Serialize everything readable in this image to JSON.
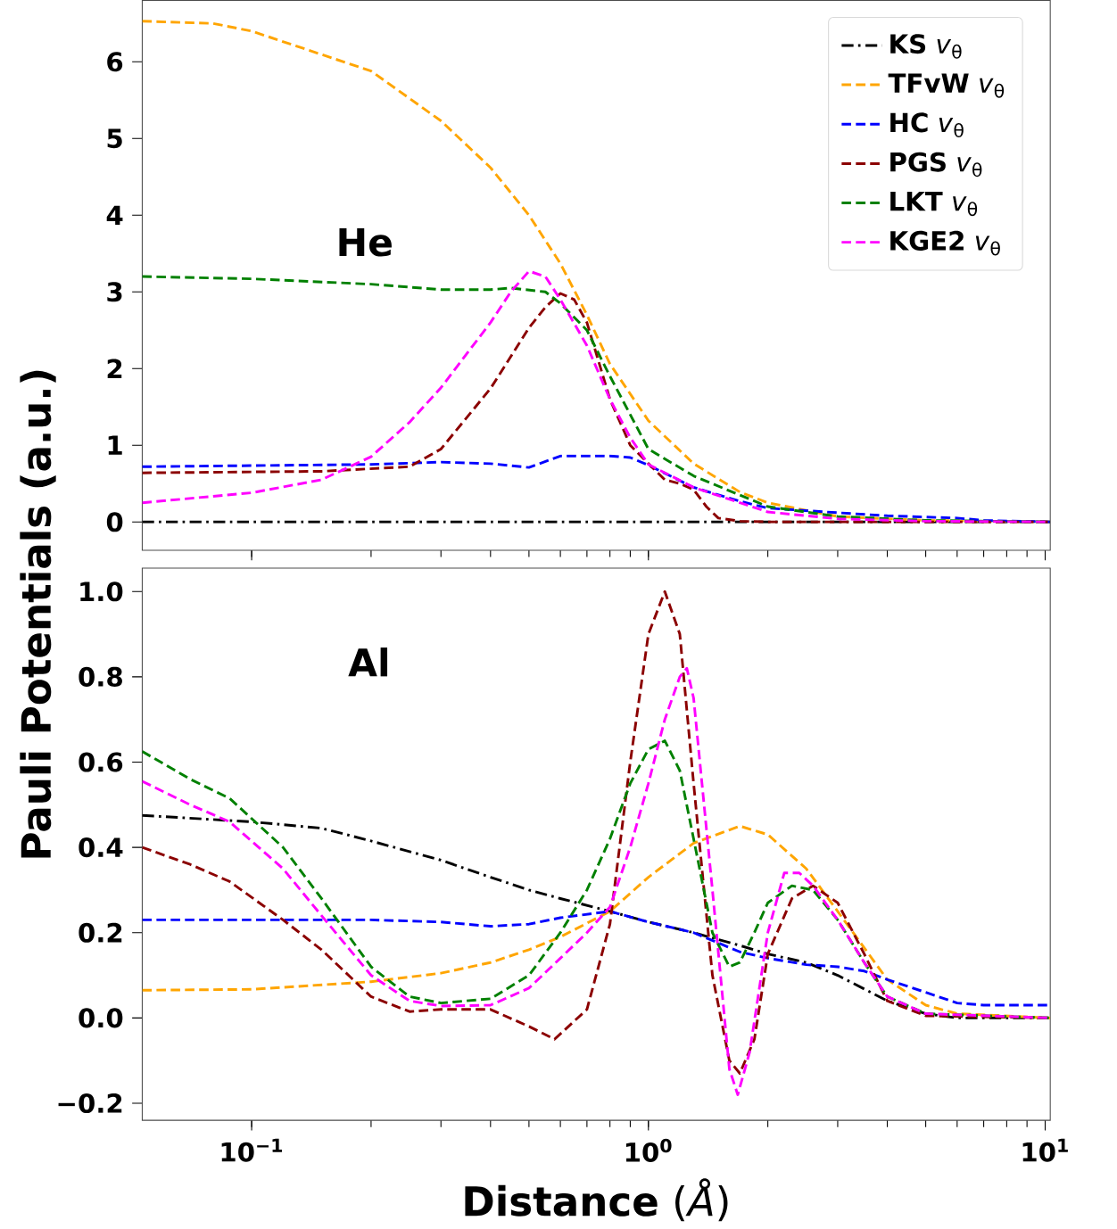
{
  "chart_data": [
    {
      "type": "line",
      "log": "x",
      "xlim": [
        0.053,
        10.3
      ],
      "ylim": [
        -0.37,
        6.8
      ],
      "legend": "top right",
      "tick_labels": "y",
      "ylabel": "Pauli Potentials (a.u.)",
      "annotations": [
        "**He**"
      ],
      "xticks": [
        {
          "value": 0.1,
          "label": null
        },
        {
          "value": 1,
          "label": null
        },
        {
          "value": 10,
          "label": null
        }
      ],
      "yticks": [
        0,
        1,
        2,
        3,
        4,
        5,
        6
      ],
      "series": [
        {
          "name": "**KS** *v*$_{θ}$",
          "color": "#000000",
          "line_style": "dashdot",
          "x": [
            0.053,
            0.1,
            1,
            10.3
          ],
          "values": [
            0,
            0,
            0,
            0
          ]
        },
        {
          "name": "**TFvW** *v*$_{θ}$",
          "color": "#ffa500",
          "line_style": "dashed",
          "x": [
            0.053,
            0.08,
            0.1,
            0.2,
            0.3,
            0.4,
            0.5,
            0.6,
            0.7,
            0.8,
            1.0,
            1.3,
            1.7,
            2,
            3,
            5,
            10.3
          ],
          "values": [
            6.53,
            6.5,
            6.4,
            5.88,
            5.23,
            4.62,
            4.0,
            3.37,
            2.7,
            2.06,
            1.32,
            0.76,
            0.39,
            0.25,
            0.07,
            0.02,
            0
          ]
        },
        {
          "name": "**HC** *v*$_{θ}$",
          "color": "#0000ff",
          "line_style": "dashed",
          "x": [
            0.053,
            0.2,
            0.3,
            0.4,
            0.5,
            0.6,
            0.8,
            0.9,
            1.0,
            1.3,
            1.7,
            2,
            3,
            4,
            6,
            7,
            10.3
          ],
          "values": [
            0.72,
            0.75,
            0.78,
            0.76,
            0.71,
            0.86,
            0.86,
            0.84,
            0.74,
            0.45,
            0.27,
            0.18,
            0.12,
            0.08,
            0.05,
            0.02,
            0
          ]
        },
        {
          "name": "**PGS** *v*$_{θ}$",
          "color": "#8b0000",
          "line_style": "dashed",
          "x": [
            0.053,
            0.15,
            0.25,
            0.3,
            0.4,
            0.5,
            0.55,
            0.6,
            0.65,
            0.7,
            0.8,
            0.9,
            1.0,
            1.1,
            1.2,
            1.3,
            1.4,
            1.5,
            1.7,
            2,
            10.3
          ],
          "values": [
            0.64,
            0.66,
            0.72,
            0.95,
            1.74,
            2.53,
            2.8,
            2.98,
            2.9,
            2.6,
            1.6,
            1.0,
            0.76,
            0.55,
            0.5,
            0.42,
            0.2,
            0.05,
            0.01,
            0,
            0
          ]
        },
        {
          "name": "**LKT** *v*$_{θ}$",
          "color": "#008000",
          "line_style": "dashed",
          "x": [
            0.053,
            0.1,
            0.2,
            0.3,
            0.4,
            0.45,
            0.55,
            0.6,
            0.7,
            0.8,
            0.9,
            1.0,
            1.3,
            1.7,
            2,
            3,
            5,
            10.3
          ],
          "values": [
            3.2,
            3.17,
            3.1,
            3.03,
            3.03,
            3.05,
            3.0,
            2.85,
            2.5,
            1.9,
            1.4,
            0.95,
            0.6,
            0.35,
            0.2,
            0.07,
            0.02,
            0
          ]
        },
        {
          "name": "**KGE2** *v*$_{θ}$",
          "color": "#ff00ff",
          "line_style": "dashed",
          "x": [
            0.053,
            0.1,
            0.15,
            0.2,
            0.25,
            0.3,
            0.4,
            0.45,
            0.5,
            0.55,
            0.6,
            0.7,
            0.8,
            0.9,
            1.0,
            1.3,
            1.7,
            2,
            3,
            5,
            10.3
          ],
          "values": [
            0.25,
            0.38,
            0.55,
            0.85,
            1.3,
            1.75,
            2.6,
            3.0,
            3.27,
            3.2,
            2.9,
            2.3,
            1.6,
            1.1,
            0.75,
            0.45,
            0.25,
            0.13,
            0.04,
            0.01,
            0
          ]
        }
      ]
    },
    {
      "type": "line",
      "log": "x",
      "xlim": [
        0.053,
        10.3
      ],
      "ylim": [
        -0.24,
        1.055
      ],
      "xlabel": "**Distance**  (*Å*)",
      "annotations": [
        "**Al**"
      ],
      "xticks": [
        {
          "value": 0.1,
          "label": "10$^{−1}$"
        },
        {
          "value": 1,
          "label": "10$^{0}$"
        },
        {
          "value": 10,
          "label": "10$^{1}$"
        }
      ],
      "yticks": [
        {
          "value": -0.2,
          "label": "−0.2"
        },
        {
          "value": 0,
          "label": "0.0"
        },
        {
          "value": 0.2,
          "label": "0.2"
        },
        {
          "value": 0.4,
          "label": "0.4"
        },
        {
          "value": 0.6,
          "label": "0.6"
        },
        {
          "value": 0.8,
          "label": "0.8"
        },
        {
          "value": 1.0,
          "label": "1.0"
        }
      ],
      "series": [
        {
          "color": "#000000",
          "line_style": "dashdot",
          "x": [
            0.053,
            0.1,
            0.15,
            0.2,
            0.3,
            0.4,
            0.5,
            0.6,
            0.8,
            1.0,
            1.3,
            1.7,
            2,
            2.5,
            3,
            4,
            5,
            6,
            10.3
          ],
          "values": [
            0.475,
            0.46,
            0.445,
            0.415,
            0.37,
            0.33,
            0.3,
            0.28,
            0.25,
            0.225,
            0.2,
            0.17,
            0.15,
            0.13,
            0.1,
            0.04,
            0.01,
            0,
            0
          ]
        },
        {
          "color": "#ffa500",
          "line_style": "dashed",
          "x": [
            0.053,
            0.1,
            0.2,
            0.3,
            0.4,
            0.5,
            0.6,
            0.8,
            1.0,
            1.3,
            1.7,
            2,
            2.5,
            3,
            4,
            5,
            6,
            10.3
          ],
          "values": [
            0.065,
            0.067,
            0.085,
            0.105,
            0.13,
            0.16,
            0.19,
            0.25,
            0.33,
            0.41,
            0.45,
            0.43,
            0.35,
            0.25,
            0.09,
            0.03,
            0.01,
            0
          ]
        },
        {
          "color": "#0000ff",
          "line_style": "dashed",
          "x": [
            0.053,
            0.2,
            0.3,
            0.4,
            0.5,
            0.6,
            0.8,
            1.0,
            1.3,
            1.7,
            2,
            2.5,
            3,
            3.5,
            4,
            5,
            6,
            7,
            10.3
          ],
          "values": [
            0.23,
            0.23,
            0.225,
            0.215,
            0.22,
            0.235,
            0.25,
            0.225,
            0.2,
            0.155,
            0.14,
            0.125,
            0.12,
            0.11,
            0.09,
            0.06,
            0.035,
            0.03,
            0.03
          ]
        },
        {
          "color": "#8b0000",
          "line_style": "dashed",
          "x": [
            0.053,
            0.07,
            0.088,
            0.12,
            0.15,
            0.2,
            0.25,
            0.3,
            0.4,
            0.5,
            0.58,
            0.7,
            0.8,
            0.9,
            1.0,
            1.1,
            1.2,
            1.3,
            1.45,
            1.6,
            1.7,
            1.85,
            2,
            2.3,
            2.6,
            3,
            3.5,
            4,
            5,
            10.3
          ],
          "values": [
            0.4,
            0.36,
            0.32,
            0.23,
            0.16,
            0.05,
            0.015,
            0.02,
            0.02,
            -0.02,
            -0.05,
            0.02,
            0.22,
            0.6,
            0.9,
            1.0,
            0.9,
            0.55,
            0.1,
            -0.1,
            -0.13,
            -0.05,
            0.15,
            0.28,
            0.31,
            0.27,
            0.15,
            0.04,
            0.005,
            0
          ]
        },
        {
          "color": "#008000",
          "line_style": "dashed",
          "x": [
            0.053,
            0.07,
            0.088,
            0.12,
            0.15,
            0.2,
            0.25,
            0.3,
            0.4,
            0.5,
            0.6,
            0.7,
            0.8,
            0.9,
            1.0,
            1.1,
            1.2,
            1.3,
            1.45,
            1.6,
            1.7,
            1.85,
            2,
            2.3,
            2.6,
            3,
            3.5,
            4,
            5,
            10.3
          ],
          "values": [
            0.625,
            0.56,
            0.515,
            0.4,
            0.28,
            0.12,
            0.05,
            0.035,
            0.045,
            0.1,
            0.2,
            0.3,
            0.42,
            0.55,
            0.63,
            0.65,
            0.58,
            0.42,
            0.2,
            0.12,
            0.13,
            0.2,
            0.27,
            0.31,
            0.3,
            0.23,
            0.13,
            0.05,
            0.01,
            0
          ]
        },
        {
          "color": "#ff00ff",
          "line_style": "dashed",
          "x": [
            0.053,
            0.07,
            0.088,
            0.12,
            0.15,
            0.2,
            0.25,
            0.3,
            0.4,
            0.5,
            0.6,
            0.7,
            0.8,
            0.9,
            1.0,
            1.1,
            1.2,
            1.25,
            1.3,
            1.45,
            1.6,
            1.68,
            1.8,
            2,
            2.2,
            2.4,
            2.6,
            3,
            3.5,
            4,
            5,
            10.3
          ],
          "values": [
            0.555,
            0.5,
            0.46,
            0.35,
            0.24,
            0.1,
            0.04,
            0.028,
            0.03,
            0.07,
            0.14,
            0.2,
            0.26,
            0.4,
            0.55,
            0.7,
            0.8,
            0.82,
            0.75,
            0.3,
            -0.12,
            -0.18,
            -0.08,
            0.2,
            0.34,
            0.34,
            0.31,
            0.23,
            0.13,
            0.05,
            0.01,
            0
          ]
        }
      ]
    }
  ]
}
